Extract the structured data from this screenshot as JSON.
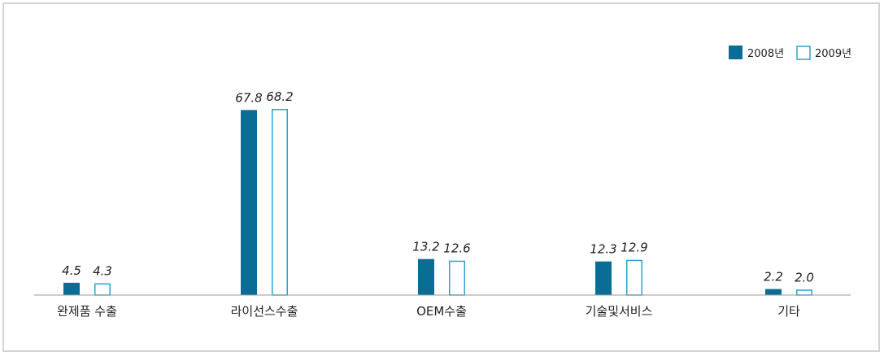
{
  "chart_data": {
    "type": "bar",
    "categories": [
      "완제품 수출",
      "라이선스수출",
      "OEM수출",
      "기술및서비스",
      "기타"
    ],
    "series": [
      {
        "name": "2008년",
        "values": [
          4.5,
          67.8,
          13.2,
          12.3,
          2.2
        ],
        "value_labels": [
          "4.5",
          "67.8",
          "13.2",
          "12.3",
          "2.2"
        ]
      },
      {
        "name": "2009년",
        "values": [
          4.3,
          68.2,
          12.6,
          12.9,
          2.0
        ],
        "value_labels": [
          "4.3",
          "68.2",
          "12.6",
          "12.9",
          "2.0"
        ]
      }
    ],
    "ylim": [
      0,
      80
    ],
    "grid": false,
    "legend_position": "top-right",
    "colors": {
      "series_2008": "#0a6d96",
      "series_2009": "#2ba3d0",
      "axis": "#9a9a9a",
      "frame": "#d4d4d4"
    }
  }
}
